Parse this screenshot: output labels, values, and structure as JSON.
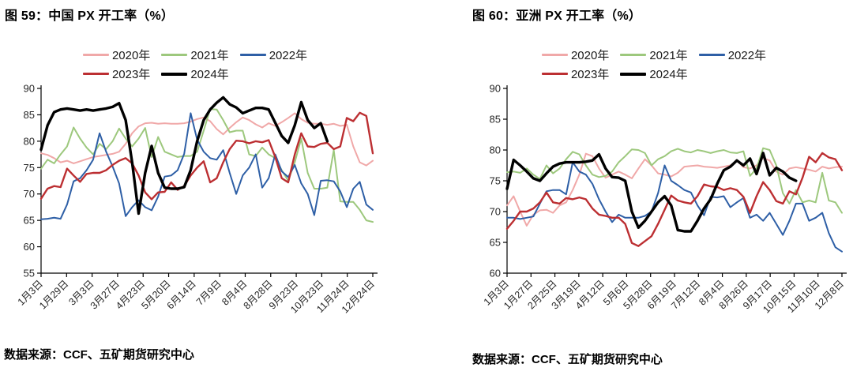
{
  "page": {
    "background": "#ffffff"
  },
  "figures": [
    {
      "title": "图 59：中国 PX 开工率（%）",
      "source": "数据来源：CCF、五矿期货研究中心"
    },
    {
      "title": "图 60：亚洲 PX 开工率（%）",
      "source": "数据来源：CCF、五矿期货研究中心"
    }
  ],
  "style": {
    "axis_color": "#000000",
    "tick_label_color": "#262626",
    "series_colors": {
      "2020": "#F0A8A8",
      "2021": "#9DC87D",
      "2022": "#2E5FA6",
      "2023": "#BC2F32",
      "2024": "#000000"
    }
  },
  "chart_data": [
    {
      "type": "line",
      "title": "图 59：中国 PX 开工率（%）",
      "xlabel": "",
      "ylabel": "",
      "ylim": [
        55,
        90
      ],
      "yticks": [
        55,
        60,
        65,
        70,
        75,
        80,
        85,
        90
      ],
      "grid": false,
      "legend_position": "top",
      "legend_rows": [
        3,
        2
      ],
      "n_points": 52,
      "x_tick_labels": [
        "1月3日",
        "1月29日",
        "3月3日",
        "3月27日",
        "4月23日",
        "5月20日",
        "6月14日",
        "7月9日",
        "8月4日",
        "8月28日",
        "9月23日",
        "10月23日",
        "11月24日",
        "12月24日"
      ],
      "series": [
        {
          "name": "2020年",
          "color": "#F0A8A8",
          "line_width": 2,
          "values": [
            77.7,
            77.4,
            76.8,
            76.0,
            76.3,
            75.8,
            76.2,
            76.6,
            77.0,
            77.2,
            77.4,
            77.6,
            78.0,
            79.5,
            81.5,
            82.8,
            83.4,
            83.5,
            83.3,
            83.4,
            83.3,
            83.3,
            83.4,
            83.7,
            84.2,
            84.5,
            83.8,
            82.3,
            81.3,
            82.5,
            83.6,
            84.5,
            84.0,
            83.2,
            82.6,
            83.4,
            82.9,
            83.6,
            84.4,
            85.3,
            84.2,
            83.5,
            83.3,
            83.3,
            83.1,
            83.3,
            82.9,
            83.1,
            79.0,
            76.0,
            75.4,
            76.3
          ]
        },
        {
          "name": "2021年",
          "color": "#9DC87D",
          "line_width": 2,
          "values": [
            74.8,
            76.5,
            75.8,
            77.5,
            79.0,
            82.6,
            80.5,
            78.8,
            77.5,
            79.5,
            78.5,
            80.0,
            82.4,
            80.5,
            79.0,
            80.5,
            82.5,
            77.0,
            80.8,
            78.0,
            77.5,
            77.0,
            77.2,
            77.2,
            78.0,
            82.0,
            86.1,
            86.0,
            84.0,
            81.7,
            82.0,
            82.0,
            77.5,
            77.2,
            78.8,
            77.5,
            76.8,
            74.5,
            72.5,
            76.0,
            80.5,
            74.0,
            71.0,
            71.0,
            71.2,
            78.3,
            68.6,
            68.5,
            68.5,
            67.0,
            65.0,
            64.7
          ]
        },
        {
          "name": "2022年",
          "color": "#2E5FA6",
          "line_width": 2,
          "values": [
            65.2,
            65.3,
            65.5,
            65.3,
            68.0,
            72.4,
            73.0,
            74.5,
            76.5,
            81.5,
            78.0,
            75.2,
            72.0,
            65.8,
            67.5,
            68.8,
            67.5,
            66.9,
            69.5,
            73.3,
            73.5,
            74.5,
            77.6,
            85.3,
            80.3,
            78.0,
            76.8,
            76.5,
            78.3,
            74.0,
            70.0,
            73.5,
            75.0,
            77.5,
            71.2,
            73.0,
            77.5,
            74.3,
            73.2,
            75.5,
            72.0,
            70.0,
            66.0,
            72.5,
            72.6,
            72.4,
            70.5,
            67.5,
            71.0,
            72.3,
            68.0,
            67.0
          ]
        },
        {
          "name": "2023年",
          "color": "#BC2F32",
          "line_width": 2.4,
          "values": [
            69.1,
            71.0,
            71.5,
            71.3,
            74.8,
            73.5,
            72.3,
            73.8,
            74.0,
            74.0,
            74.5,
            75.5,
            76.3,
            76.8,
            75.8,
            73.5,
            70.3,
            69.0,
            70.3,
            70.4,
            72.2,
            70.8,
            71.5,
            73.5,
            75.0,
            76.2,
            72.2,
            73.0,
            76.0,
            78.5,
            80.1,
            80.0,
            79.6,
            80.0,
            79.8,
            80.2,
            77.0,
            73.0,
            72.2,
            77.5,
            81.5,
            79.0,
            78.9,
            79.5,
            79.7,
            78.5,
            79.0,
            84.4,
            83.8,
            85.4,
            84.8,
            77.7
          ]
        },
        {
          "name": "2024年",
          "color": "#000000",
          "line_width": 3.4,
          "values": [
            78.4,
            83.0,
            85.5,
            86.0,
            86.2,
            86.0,
            85.8,
            86.0,
            85.8,
            86.0,
            86.2,
            86.5,
            87.2,
            84.0,
            76.0,
            66.3,
            74.0,
            79.1,
            74.0,
            71.2,
            71.0,
            71.0,
            71.3,
            74.5,
            80.0,
            84.0,
            86.0,
            87.3,
            88.3,
            87.0,
            86.4,
            85.3,
            85.8,
            86.3,
            86.3,
            86.0,
            83.5,
            81.0,
            79.7,
            83.0,
            87.4,
            84.0,
            82.5,
            83.4,
            80.0
          ]
        }
      ]
    },
    {
      "type": "line",
      "title": "图 60：亚洲 PX 开工率（%）",
      "xlabel": "",
      "ylabel": "",
      "ylim": [
        60,
        90
      ],
      "yticks": [
        60,
        65,
        70,
        75,
        80,
        85,
        90
      ],
      "grid": false,
      "legend_position": "top",
      "legend_rows": [
        3,
        2
      ],
      "n_points": 52,
      "x_tick_labels": [
        "1月3日",
        "1月27日",
        "2月25日",
        "3月19日",
        "4月12日",
        "5月6日",
        "5月28日",
        "6月19日",
        "7月12日",
        "8月4日",
        "8月26日",
        "9月17日",
        "10月15日",
        "11月10日",
        "12月8日"
      ],
      "series": [
        {
          "name": "2020年",
          "color": "#F0A8A8",
          "line_width": 2,
          "values": [
            71.0,
            72.5,
            70.0,
            67.7,
            69.5,
            70.2,
            70.3,
            69.8,
            71.0,
            71.5,
            73.5,
            76.0,
            79.4,
            79.0,
            77.0,
            75.5,
            76.0,
            76.5,
            76.0,
            75.4,
            77.0,
            78.5,
            77.5,
            76.2,
            76.0,
            75.7,
            76.3,
            77.3,
            77.4,
            77.5,
            77.3,
            77.2,
            77.1,
            77.3,
            77.5,
            78.3,
            77.2,
            77.0,
            77.5,
            78.7,
            78.3,
            76.5,
            76.0,
            77.0,
            77.2,
            77.0,
            76.8,
            76.5,
            77.3,
            77.0,
            77.2,
            77.3
          ]
        },
        {
          "name": "2021年",
          "color": "#9DC87D",
          "line_width": 2,
          "values": [
            76.4,
            76.5,
            76.3,
            77.0,
            76.0,
            75.3,
            77.5,
            76.2,
            77.0,
            78.5,
            79.7,
            79.3,
            77.5,
            76.0,
            75.6,
            75.8,
            76.5,
            78.0,
            79.0,
            80.1,
            80.0,
            79.5,
            77.5,
            78.5,
            79.0,
            79.8,
            80.2,
            79.8,
            79.6,
            80.0,
            79.8,
            79.5,
            79.8,
            80.0,
            79.6,
            79.5,
            79.8,
            75.8,
            77.0,
            80.3,
            80.0,
            77.5,
            73.0,
            71.3,
            73.5,
            71.5,
            71.8,
            71.5,
            76.3,
            71.8,
            71.5,
            69.8
          ]
        },
        {
          "name": "2022年",
          "color": "#2E5FA6",
          "line_width": 2,
          "values": [
            69.0,
            69.0,
            68.8,
            69.0,
            69.2,
            71.3,
            73.3,
            73.5,
            73.5,
            72.8,
            78.0,
            76.5,
            76.0,
            74.5,
            72.0,
            70.0,
            68.3,
            69.5,
            69.0,
            69.0,
            69.0,
            69.3,
            70.0,
            73.0,
            77.5,
            75.0,
            74.3,
            73.5,
            73.1,
            71.0,
            69.4,
            72.4,
            72.3,
            72.5,
            70.7,
            71.5,
            72.2,
            69.0,
            69.5,
            68.5,
            69.8,
            68.0,
            66.2,
            68.5,
            71.3,
            71.3,
            68.5,
            69.0,
            69.8,
            66.5,
            64.2,
            63.5
          ]
        },
        {
          "name": "2023年",
          "color": "#BC2F32",
          "line_width": 2.4,
          "values": [
            67.2,
            68.5,
            70.0,
            70.0,
            70.5,
            71.5,
            73.1,
            71.5,
            71.3,
            72.2,
            72.0,
            72.3,
            72.0,
            70.5,
            69.5,
            69.3,
            69.0,
            69.0,
            68.0,
            64.9,
            64.4,
            65.2,
            66.0,
            68.0,
            70.3,
            72.6,
            71.8,
            71.5,
            71.3,
            72.5,
            74.4,
            74.1,
            74.0,
            73.5,
            73.8,
            73.5,
            72.4,
            69.8,
            72.5,
            74.8,
            73.5,
            71.7,
            71.3,
            73.3,
            72.8,
            75.5,
            78.9,
            78.0,
            79.5,
            78.8,
            78.5,
            76.7
          ]
        },
        {
          "name": "2024年",
          "color": "#000000",
          "line_width": 3.4,
          "values": [
            73.7,
            78.4,
            77.5,
            76.5,
            75.4,
            75.0,
            76.2,
            77.3,
            77.8,
            78.0,
            78.0,
            78.0,
            78.1,
            78.3,
            79.3,
            77.0,
            75.6,
            75.5,
            75.0,
            70.0,
            67.4,
            68.5,
            70.0,
            71.5,
            72.5,
            71.0,
            67.0,
            66.8,
            66.8,
            68.5,
            70.5,
            72.0,
            74.5,
            76.7,
            77.3,
            78.3,
            77.5,
            78.6,
            76.1,
            79.5,
            75.9,
            77.1,
            76.5,
            75.5,
            75.0
          ]
        }
      ]
    }
  ]
}
